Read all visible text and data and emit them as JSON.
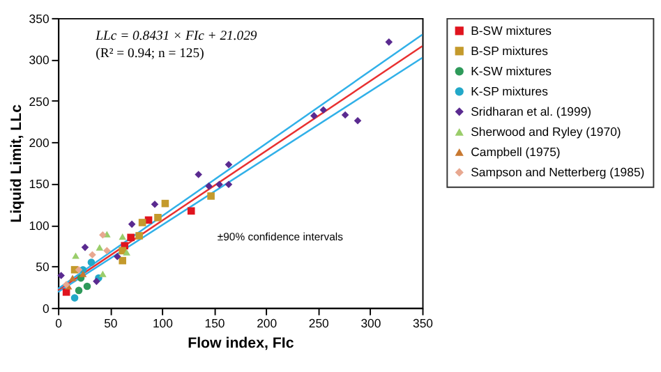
{
  "chart_data": {
    "type": "scatter",
    "xlabel": "Flow index, FIc",
    "ylabel": "Liquid Limit, LLc",
    "xlim": [
      0,
      350
    ],
    "xticks": [
      0,
      50,
      100,
      150,
      200,
      250,
      300,
      350
    ],
    "ylim": [
      0,
      350
    ],
    "yticks": [
      0,
      50,
      100,
      150,
      200,
      250,
      300,
      350
    ],
    "grid": false,
    "legend": "right",
    "annotations": [
      "LLc = 0.8431 × FIc + 21.029",
      "(R² = 0.94; n = 125)",
      "±90% confidence intervals"
    ],
    "series": [
      {
        "name": "B-SW mixtures",
        "color": "#e0141e",
        "marker": "square",
        "x": [
          128,
          87,
          70,
          64,
          8
        ],
        "values": [
          117,
          106,
          85,
          75,
          19
        ]
      },
      {
        "name": "B-SP mixtures",
        "color": "#c49a2c",
        "marker": "square",
        "x": [
          103,
          96,
          147,
          81,
          78,
          62,
          62,
          16
        ],
        "values": [
          126,
          109,
          135,
          103,
          87,
          69,
          57,
          46
        ]
      },
      {
        "name": "K-SW mixtures",
        "color": "#2e9a5a",
        "marker": "circle",
        "x": [
          20,
          28,
          22
        ],
        "values": [
          21,
          26,
          36
        ]
      },
      {
        "name": "K-SP mixtures",
        "color": "#22a8c8",
        "marker": "circle",
        "x": [
          16,
          32,
          24,
          39
        ],
        "values": [
          12,
          55,
          46,
          36
        ]
      },
      {
        "name": "Sridharan et al. (1999)",
        "color": "#5a2a90",
        "marker": "diamond",
        "x": [
          318,
          246,
          255,
          276,
          288,
          135,
          145,
          155,
          164,
          164,
          93,
          71,
          3,
          26,
          57,
          37
        ],
        "values": [
          321,
          232,
          239,
          233,
          226,
          161,
          147,
          149,
          173,
          149,
          125,
          101,
          39,
          73,
          62,
          32
        ]
      },
      {
        "name": "Sherwood and Ryley (1970)",
        "color": "#9acd6a",
        "marker": "triangle",
        "x": [
          47,
          40,
          17,
          62,
          43,
          66
        ],
        "values": [
          89,
          73,
          63,
          86,
          41,
          67
        ]
      },
      {
        "name": "Campbell (1975)",
        "color": "#c87830",
        "marker": "triangle",
        "x": [
          14,
          24,
          10
        ],
        "values": [
          36,
          41,
          26
        ]
      },
      {
        "name": "Sampson and Netterberg (1985)",
        "color": "#e8a890",
        "marker": "diamond",
        "x": [
          43,
          33,
          47,
          8,
          20
        ],
        "values": [
          88,
          64,
          69,
          28,
          46
        ]
      },
      {
        "type": "line",
        "color": "#e83030",
        "marker": "none",
        "x": [
          0,
          350
        ],
        "values": [
          21,
          316
        ]
      },
      {
        "type": "line",
        "color": "#30b0e8",
        "marker": "none",
        "x": [
          0,
          350
        ],
        "values": [
          23,
          330
        ]
      },
      {
        "type": "line",
        "color": "#30b0e8",
        "marker": "none",
        "x": [
          0,
          350
        ],
        "values": [
          19,
          302
        ]
      }
    ]
  }
}
